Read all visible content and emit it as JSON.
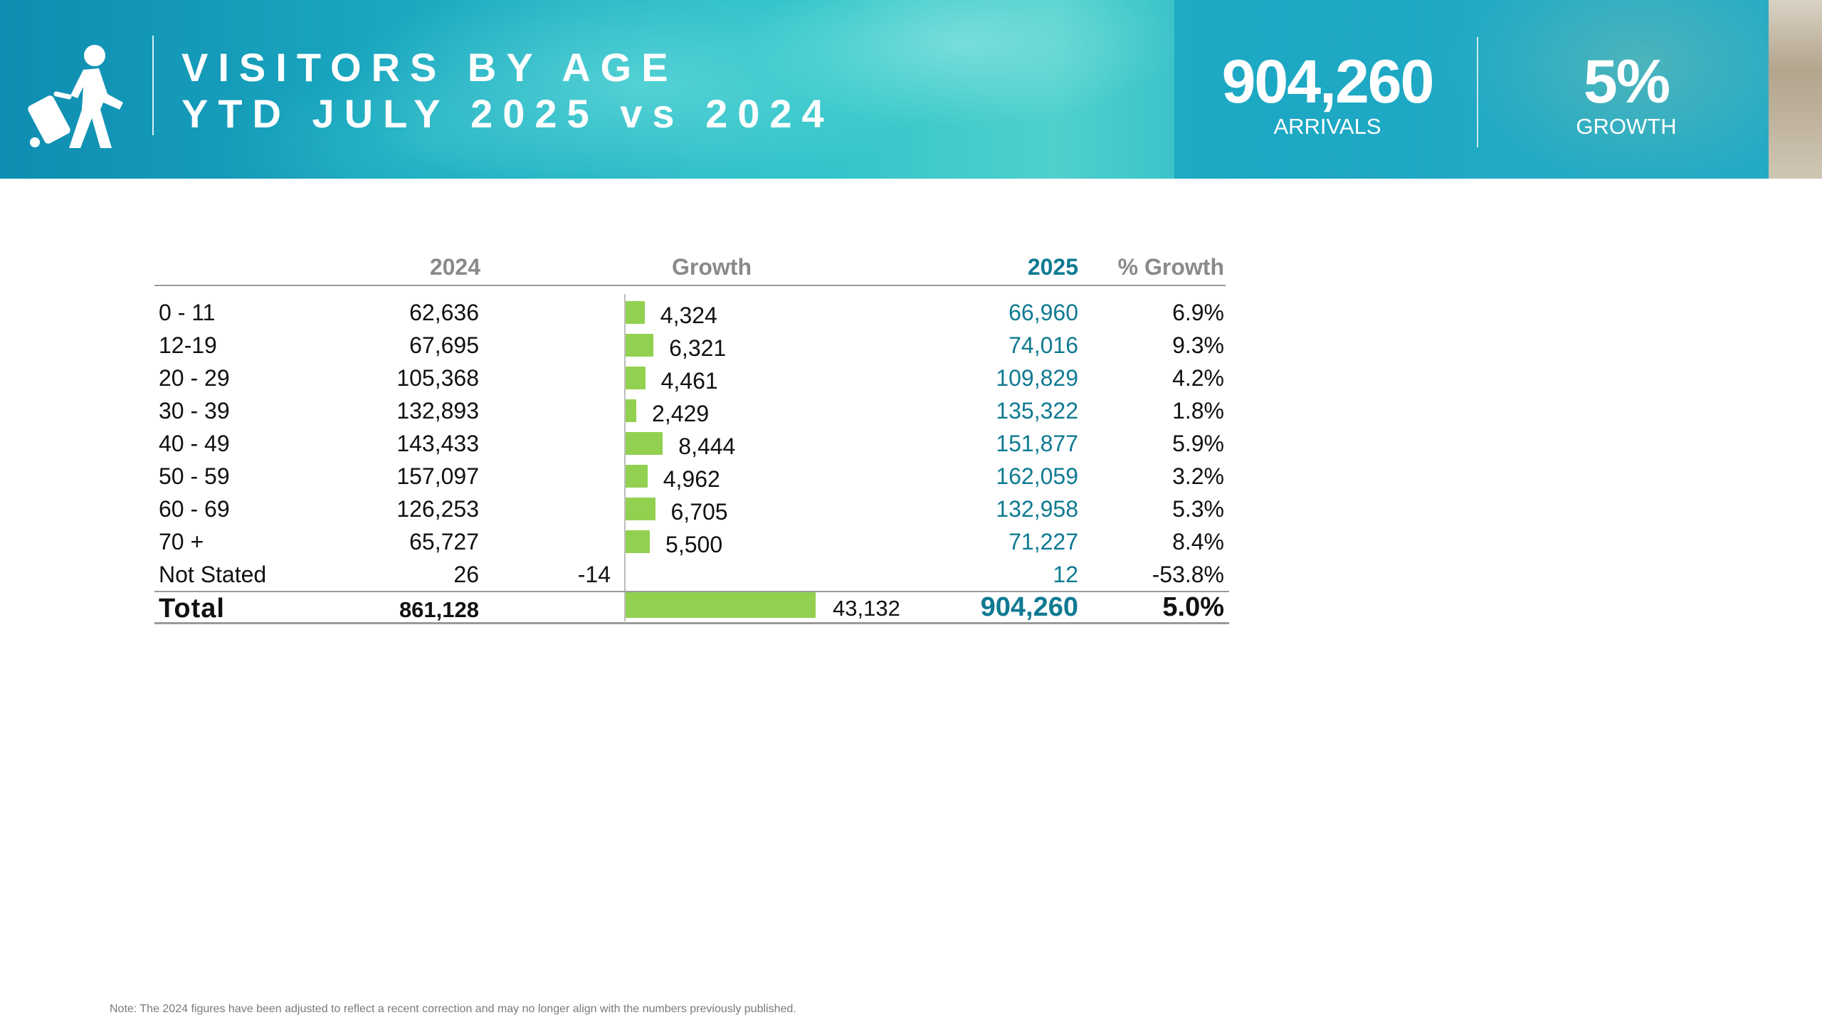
{
  "header": {
    "title_line1": "VISITORS BY AGE",
    "title_line2": "YTD JULY 2025 vs 2024",
    "kpi_arrivals_value": "904,260",
    "kpi_arrivals_label": "ARRIVALS",
    "kpi_growth_value": "5%",
    "kpi_growth_label": "GROWTH",
    "icon": "traveler-with-suitcase-icon"
  },
  "colors": {
    "banner_primary": "#1aa8c0",
    "bar": "#92d050",
    "value_2025": "#0f7a92",
    "header_gray": "#8a8a8a"
  },
  "chart_data": {
    "type": "table",
    "title": "VISITORS BY AGE YTD JULY 2025 vs 2024",
    "columns": [
      "2024",
      "Growth",
      "2025",
      "% Growth"
    ],
    "rows": [
      {
        "age": "0 - 11",
        "y2024": "62,636",
        "growth": 4324,
        "growth_label": "4,324",
        "y2025": "66,960",
        "pct": "6.9%"
      },
      {
        "age": "12-19",
        "y2024": "67,695",
        "growth": 6321,
        "growth_label": "6,321",
        "y2025": "74,016",
        "pct": "9.3%"
      },
      {
        "age": "20 - 29",
        "y2024": "105,368",
        "growth": 4461,
        "growth_label": "4,461",
        "y2025": "109,829",
        "pct": "4.2%"
      },
      {
        "age": "30 - 39",
        "y2024": "132,893",
        "growth": 2429,
        "growth_label": "2,429",
        "y2025": "135,322",
        "pct": "1.8%"
      },
      {
        "age": "40 - 49",
        "y2024": "143,433",
        "growth": 8444,
        "growth_label": "8,444",
        "y2025": "151,877",
        "pct": "5.9%"
      },
      {
        "age": "50 - 59",
        "y2024": "157,097",
        "growth": 4962,
        "growth_label": "4,962",
        "y2025": "162,059",
        "pct": "3.2%"
      },
      {
        "age": "60 - 69",
        "y2024": "126,253",
        "growth": 6705,
        "growth_label": "6,705",
        "y2025": "132,958",
        "pct": "5.3%"
      },
      {
        "age": "70 +",
        "y2024": "65,727",
        "growth": 5500,
        "growth_label": "5,500",
        "y2025": "71,227",
        "pct": "8.4%"
      },
      {
        "age": "Not Stated",
        "y2024": "26",
        "growth": -14,
        "growth_label": "-14",
        "y2025": "12",
        "pct": "-53.8%"
      }
    ],
    "total": {
      "label": "Total",
      "y2024": "861,128",
      "growth": 43132,
      "growth_label": "43,132",
      "y2025": "904,260",
      "pct": "5.0%"
    }
  },
  "note": "Note: The 2024 figures have been adjusted to reflect a recent correction and may no longer align with the numbers previously published."
}
